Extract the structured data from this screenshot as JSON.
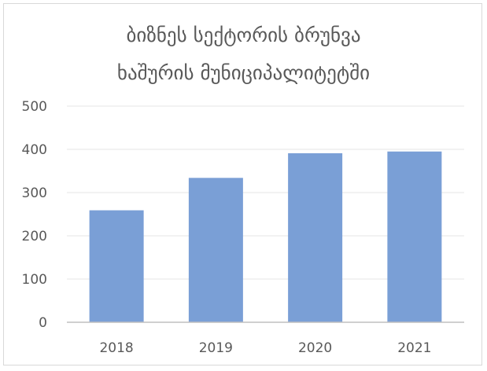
{
  "chart_data": {
    "type": "bar",
    "title": "ბიზნეს სექტორის ბრუნვა ხაშურის მუნიციპალიტეტში",
    "title_lines": [
      "ბიზნეს სექტორის ბრუნვა",
      "ხაშურის მუნიციპალიტეტში"
    ],
    "categories": [
      "2018",
      "2019",
      "2020",
      "2021"
    ],
    "values": [
      259,
      334,
      391,
      395
    ],
    "ylim": [
      0,
      500
    ],
    "yticks": [
      "0",
      "100",
      "200",
      "300",
      "400",
      "500"
    ],
    "xlabel": "",
    "ylabel": "",
    "grid": true,
    "legend": false,
    "bar_color": "#7a9fd6",
    "axis_color": "#bfbfbf",
    "grid_color": "#e6e6e6",
    "text_color": "#595959"
  }
}
